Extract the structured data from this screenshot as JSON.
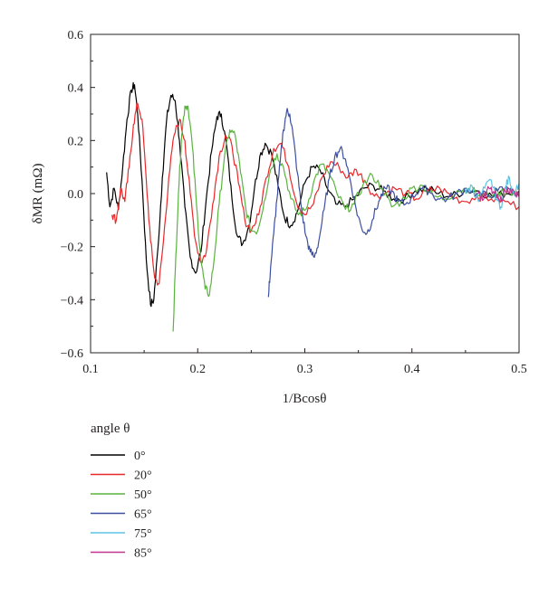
{
  "chart_data": {
    "type": "line",
    "xlabel": "1/Bcosθ",
    "ylabel": "δMR (mΩ)",
    "xlim": [
      0.1,
      0.5
    ],
    "ylim": [
      -0.6,
      0.6
    ],
    "x_ticks": [
      "0.1",
      "0.2",
      "0.3",
      "0.4",
      "0.5"
    ],
    "y_ticks": [
      "0.6",
      "0.4",
      "0.2",
      "0.0",
      "−0.2",
      "−0.4",
      "−0.6"
    ],
    "grid": false,
    "legend_title": "angle θ",
    "legend_placement": "bottom-left, below plot",
    "series": [
      {
        "name": "0°",
        "color": "#000000",
        "points": [
          [
            0.115,
            0.08
          ],
          [
            0.118,
            -0.05
          ],
          [
            0.122,
            0.02
          ],
          [
            0.126,
            -0.06
          ],
          [
            0.13,
            0.1
          ],
          [
            0.134,
            0.28
          ],
          [
            0.138,
            0.39
          ],
          [
            0.141,
            0.41
          ],
          [
            0.144,
            0.3
          ],
          [
            0.148,
            0.05
          ],
          [
            0.152,
            -0.25
          ],
          [
            0.156,
            -0.42
          ],
          [
            0.159,
            -0.4
          ],
          [
            0.163,
            -0.2
          ],
          [
            0.167,
            0.06
          ],
          [
            0.171,
            0.28
          ],
          [
            0.175,
            0.37
          ],
          [
            0.179,
            0.35
          ],
          [
            0.183,
            0.2
          ],
          [
            0.188,
            -0.05
          ],
          [
            0.193,
            -0.24
          ],
          [
            0.198,
            -0.3
          ],
          [
            0.203,
            -0.22
          ],
          [
            0.208,
            -0.02
          ],
          [
            0.213,
            0.16
          ],
          [
            0.218,
            0.29
          ],
          [
            0.222,
            0.3
          ],
          [
            0.227,
            0.18
          ],
          [
            0.232,
            -0.02
          ],
          [
            0.237,
            -0.16
          ],
          [
            0.242,
            -0.19
          ],
          [
            0.248,
            -0.12
          ],
          [
            0.253,
            0.02
          ],
          [
            0.258,
            0.14
          ],
          [
            0.263,
            0.19
          ],
          [
            0.269,
            0.15
          ],
          [
            0.275,
            0.03
          ],
          [
            0.281,
            -0.09
          ],
          [
            0.287,
            -0.12
          ],
          [
            0.293,
            -0.07
          ],
          [
            0.3,
            0.04
          ],
          [
            0.307,
            0.1
          ],
          [
            0.314,
            0.09
          ],
          [
            0.321,
            0.02
          ],
          [
            0.329,
            -0.04
          ],
          [
            0.337,
            -0.05
          ],
          [
            0.346,
            -0.02
          ],
          [
            0.355,
            0.02
          ],
          [
            0.364,
            0.03
          ],
          [
            0.373,
            0.01
          ],
          [
            0.383,
            -0.02
          ],
          [
            0.393,
            -0.02
          ],
          [
            0.403,
            0.01
          ],
          [
            0.414,
            0.02
          ],
          [
            0.425,
            0.0
          ],
          [
            0.437,
            -0.01
          ],
          [
            0.449,
            0.01
          ],
          [
            0.462,
            0.01
          ],
          [
            0.475,
            -0.01
          ],
          [
            0.488,
            0.0
          ],
          [
            0.5,
            0.01
          ]
        ]
      },
      {
        "name": "20°",
        "color": "#e8282a",
        "points": [
          [
            0.12,
            -0.08
          ],
          [
            0.124,
            -0.1
          ],
          [
            0.128,
            0.02
          ],
          [
            0.132,
            -0.03
          ],
          [
            0.136,
            0.1
          ],
          [
            0.14,
            0.26
          ],
          [
            0.144,
            0.34
          ],
          [
            0.148,
            0.28
          ],
          [
            0.152,
            0.05
          ],
          [
            0.156,
            -0.18
          ],
          [
            0.16,
            -0.32
          ],
          [
            0.164,
            -0.34
          ],
          [
            0.168,
            -0.18
          ],
          [
            0.173,
            0.06
          ],
          [
            0.178,
            0.22
          ],
          [
            0.183,
            0.28
          ],
          [
            0.188,
            0.2
          ],
          [
            0.193,
            0.0
          ],
          [
            0.198,
            -0.18
          ],
          [
            0.203,
            -0.26
          ],
          [
            0.208,
            -0.22
          ],
          [
            0.214,
            -0.04
          ],
          [
            0.22,
            0.14
          ],
          [
            0.226,
            0.22
          ],
          [
            0.232,
            0.18
          ],
          [
            0.238,
            0.04
          ],
          [
            0.244,
            -0.1
          ],
          [
            0.25,
            -0.14
          ],
          [
            0.257,
            -0.08
          ],
          [
            0.264,
            0.06
          ],
          [
            0.271,
            0.17
          ],
          [
            0.278,
            0.19
          ],
          [
            0.285,
            0.1
          ],
          [
            0.292,
            -0.03
          ],
          [
            0.3,
            -0.08
          ],
          [
            0.308,
            -0.04
          ],
          [
            0.316,
            0.06
          ],
          [
            0.324,
            0.12
          ],
          [
            0.332,
            0.1
          ],
          [
            0.34,
            0.06
          ],
          [
            0.348,
            0.09
          ],
          [
            0.356,
            0.05
          ],
          [
            0.365,
            -0.01
          ],
          [
            0.374,
            0.0
          ],
          [
            0.384,
            0.02
          ],
          [
            0.394,
            0.0
          ],
          [
            0.404,
            -0.02
          ],
          [
            0.415,
            0.01
          ],
          [
            0.426,
            0.02
          ],
          [
            0.437,
            -0.01
          ],
          [
            0.449,
            -0.03
          ],
          [
            0.461,
            -0.01
          ],
          [
            0.474,
            -0.02
          ],
          [
            0.487,
            -0.03
          ],
          [
            0.5,
            -0.05
          ]
        ]
      },
      {
        "name": "50°",
        "color": "#5ab33f",
        "points": [
          [
            0.177,
            -0.52
          ],
          [
            0.179,
            -0.3
          ],
          [
            0.182,
            0.0
          ],
          [
            0.185,
            0.22
          ],
          [
            0.188,
            0.33
          ],
          [
            0.191,
            0.33
          ],
          [
            0.195,
            0.18
          ],
          [
            0.199,
            -0.05
          ],
          [
            0.203,
            -0.25
          ],
          [
            0.207,
            -0.36
          ],
          [
            0.211,
            -0.38
          ],
          [
            0.215,
            -0.26
          ],
          [
            0.22,
            -0.04
          ],
          [
            0.225,
            0.14
          ],
          [
            0.23,
            0.24
          ],
          [
            0.235,
            0.22
          ],
          [
            0.24,
            0.08
          ],
          [
            0.245,
            -0.06
          ],
          [
            0.25,
            -0.14
          ],
          [
            0.256,
            -0.14
          ],
          [
            0.262,
            -0.03
          ],
          [
            0.268,
            0.09
          ],
          [
            0.274,
            0.15
          ],
          [
            0.28,
            0.1
          ],
          [
            0.287,
            -0.02
          ],
          [
            0.294,
            -0.08
          ],
          [
            0.301,
            -0.06
          ],
          [
            0.308,
            0.04
          ],
          [
            0.315,
            0.11
          ],
          [
            0.322,
            0.08
          ],
          [
            0.33,
            0.0
          ],
          [
            0.338,
            -0.06
          ],
          [
            0.346,
            -0.04
          ],
          [
            0.354,
            0.03
          ],
          [
            0.363,
            0.07
          ],
          [
            0.372,
            0.02
          ],
          [
            0.381,
            -0.05
          ],
          [
            0.39,
            -0.03
          ],
          [
            0.4,
            0.02
          ],
          [
            0.41,
            0.03
          ],
          [
            0.42,
            -0.01
          ],
          [
            0.431,
            -0.02
          ],
          [
            0.442,
            0.01
          ],
          [
            0.453,
            0.02
          ],
          [
            0.465,
            -0.01
          ],
          [
            0.477,
            0.0
          ],
          [
            0.489,
            0.01
          ],
          [
            0.5,
            0.0
          ]
        ]
      },
      {
        "name": "65°",
        "color": "#3d4fa0",
        "points": [
          [
            0.266,
            -0.39
          ],
          [
            0.268,
            -0.28
          ],
          [
            0.271,
            -0.15
          ],
          [
            0.274,
            -0.02
          ],
          [
            0.277,
            0.12
          ],
          [
            0.28,
            0.24
          ],
          [
            0.283,
            0.31
          ],
          [
            0.286,
            0.3
          ],
          [
            0.289,
            0.22
          ],
          [
            0.293,
            0.08
          ],
          [
            0.297,
            -0.06
          ],
          [
            0.301,
            -0.16
          ],
          [
            0.305,
            -0.22
          ],
          [
            0.309,
            -0.24
          ],
          [
            0.313,
            -0.18
          ],
          [
            0.318,
            -0.06
          ],
          [
            0.323,
            0.06
          ],
          [
            0.328,
            0.14
          ],
          [
            0.333,
            0.17
          ],
          [
            0.338,
            0.13
          ],
          [
            0.343,
            0.04
          ],
          [
            0.348,
            -0.06
          ],
          [
            0.353,
            -0.13
          ],
          [
            0.358,
            -0.15
          ],
          [
            0.363,
            -0.1
          ],
          [
            0.369,
            -0.03
          ],
          [
            0.375,
            0.02
          ],
          [
            0.381,
            0.01
          ],
          [
            0.387,
            -0.03
          ],
          [
            0.394,
            -0.04
          ],
          [
            0.401,
            -0.01
          ],
          [
            0.408,
            0.02
          ],
          [
            0.416,
            0.01
          ],
          [
            0.424,
            -0.02
          ],
          [
            0.433,
            -0.02
          ],
          [
            0.442,
            0.0
          ],
          [
            0.451,
            0.02
          ],
          [
            0.461,
            0.0
          ],
          [
            0.471,
            -0.01
          ],
          [
            0.48,
            0.01
          ],
          [
            0.49,
            0.02
          ],
          [
            0.5,
            0.0
          ]
        ]
      },
      {
        "name": "75°",
        "color": "#5bc4e6",
        "points": [
          [
            0.45,
            0.0
          ],
          [
            0.456,
            0.03
          ],
          [
            0.462,
            -0.03
          ],
          [
            0.468,
            0.02
          ],
          [
            0.474,
            0.05
          ],
          [
            0.479,
            -0.02
          ],
          [
            0.483,
            -0.05
          ],
          [
            0.487,
            0.02
          ],
          [
            0.491,
            0.06
          ],
          [
            0.495,
            0.0
          ],
          [
            0.5,
            0.04
          ]
        ]
      },
      {
        "name": "85°",
        "color": "#c0358c",
        "points": [
          [
            0.462,
            0.0
          ],
          [
            0.467,
            -0.02
          ],
          [
            0.472,
            0.02
          ],
          [
            0.477,
            0.0
          ],
          [
            0.482,
            -0.03
          ],
          [
            0.487,
            0.01
          ],
          [
            0.492,
            0.02
          ],
          [
            0.497,
            -0.01
          ],
          [
            0.5,
            0.0
          ]
        ]
      }
    ]
  }
}
